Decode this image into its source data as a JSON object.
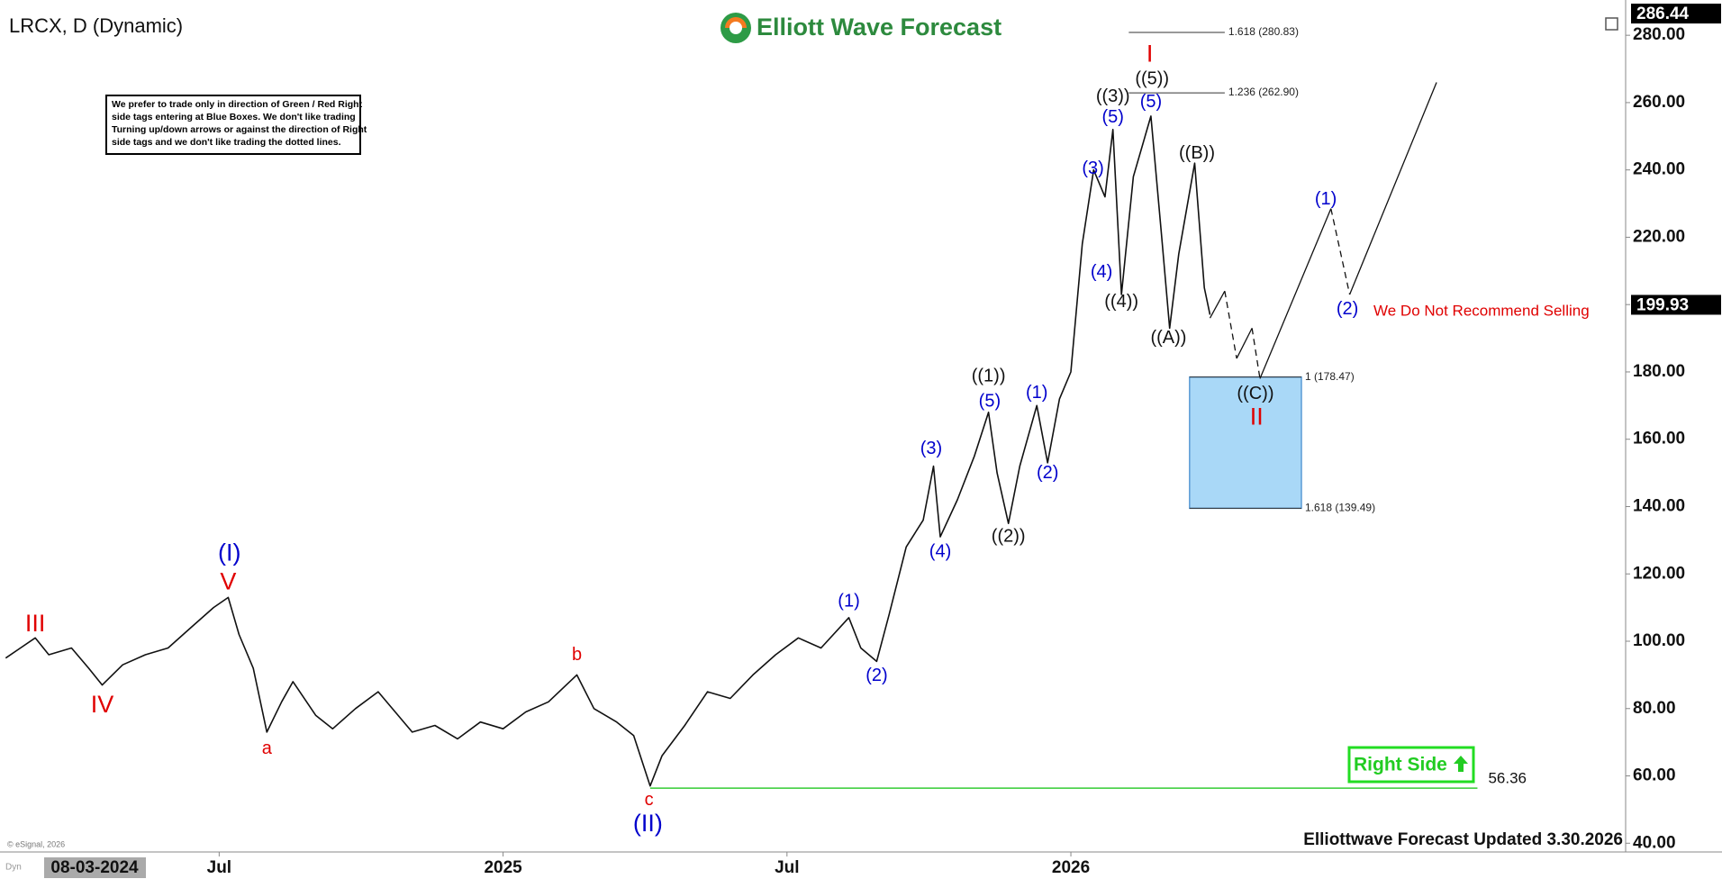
{
  "chart_data": {
    "type": "line",
    "title": "LRCX, D (Dynamic)",
    "logo": "Elliott Wave Forecast",
    "footer": "Elliottwave Forecast Updated 3.30.2026",
    "copyright": "© eSignal, 2026",
    "corner_tag": "Dyn",
    "cursor_date": "08-03-2024",
    "info_box": {
      "lines": [
        "We prefer to trade only in direction of Green / Red Right",
        "side tags entering at Blue Boxes. We don't like trading",
        "Turning up/down arrows or against the direction of Right",
        "side tags and we don't like trading the dotted lines."
      ]
    },
    "warning": "We Do Not Recommend Selling",
    "right_side": "Right Side",
    "xlim": [
      2024.114,
      2026.977
    ],
    "xticks": [
      {
        "value": 2024.5,
        "label": "Jul"
      },
      {
        "value": 2025,
        "label": "2025"
      },
      {
        "value": 2025.5,
        "label": "Jul"
      },
      {
        "value": 2026,
        "label": "2026"
      }
    ],
    "ylim": [
      37.4,
      287.8
    ],
    "yticks": [
      {
        "value": 40,
        "label": "40.00"
      },
      {
        "value": 60,
        "label": "60.00"
      },
      {
        "value": 80,
        "label": "80.00"
      },
      {
        "value": 100,
        "label": "100.00"
      },
      {
        "value": 120,
        "label": "120.00"
      },
      {
        "value": 140,
        "label": "140.00"
      },
      {
        "value": 160,
        "label": "160.00"
      },
      {
        "value": 180,
        "label": "180.00"
      },
      {
        "value": 200,
        "label": "200.00"
      },
      {
        "value": 220,
        "label": "220.00"
      },
      {
        "value": 240,
        "label": "240.00"
      },
      {
        "value": 260,
        "label": "260.00"
      },
      {
        "value": 280,
        "label": "280.00"
      }
    ],
    "axis_readout": 286.44,
    "last_price": 199.93,
    "series": [
      {
        "color": "#111111",
        "x": [
          2024.124,
          2024.15,
          2024.176,
          2024.2,
          2024.24,
          2024.27,
          2024.294,
          2024.33,
          2024.37,
          2024.41,
          2024.45,
          2024.49,
          2024.516,
          2024.535,
          2024.56,
          2024.584,
          2024.61,
          2024.63,
          2024.67,
          2024.7,
          2024.74,
          2024.78,
          2024.81,
          2024.84,
          2024.88,
          2024.92,
          2024.96,
          2025.0,
          2025.04,
          2025.08,
          2025.13,
          2025.16,
          2025.2,
          2025.23,
          2025.259,
          2025.28,
          2025.32,
          2025.36,
          2025.4,
          2025.44,
          2025.48,
          2025.52,
          2025.56,
          2025.609,
          2025.63,
          2025.658,
          2025.68,
          2025.71,
          2025.74,
          2025.758,
          2025.77,
          2025.8,
          2025.83,
          2025.855,
          2025.87,
          2025.89,
          2025.91,
          2025.94,
          2025.959,
          2025.98,
          2026.0,
          2026.02,
          2026.04,
          2026.06,
          2026.074,
          2026.089,
          2026.11,
          2026.141,
          2026.16,
          2026.174,
          2026.19,
          2026.218,
          2026.235,
          2026.245
        ],
        "values": [
          95,
          98,
          101,
          96,
          98,
          92,
          87,
          93,
          96,
          98,
          104,
          110,
          113,
          102,
          92,
          73,
          82,
          88,
          78,
          74,
          80,
          85,
          79,
          73,
          75,
          71,
          76,
          74,
          79,
          82,
          90,
          80,
          76,
          72,
          57,
          66,
          75,
          85,
          83,
          90,
          96,
          101,
          98,
          107,
          98,
          94,
          108,
          128,
          136,
          152,
          131,
          142,
          155,
          168,
          150,
          135,
          152,
          170,
          153,
          172,
          180,
          218,
          240,
          232,
          252,
          203,
          238,
          256,
          220,
          193,
          215,
          242,
          205,
          197
        ]
      }
    ],
    "projection": {
      "color": "#111111",
      "x": [
        2026.245,
        2026.271,
        2026.292,
        2026.319,
        2026.333,
        2026.458,
        2026.491,
        2026.644
      ],
      "values": [
        196,
        204,
        184,
        193,
        178,
        228.5,
        203,
        266
      ],
      "dashed": [
        false,
        true,
        false,
        true,
        false,
        true,
        false
      ]
    },
    "fib_levels": [
      {
        "value": 280.83,
        "label": "1.618 (280.83)",
        "x": [
          2026.102,
          2026.271
        ]
      },
      {
        "value": 262.9,
        "label": "1.236 (262.90)",
        "x": [
          2026.102,
          2026.271
        ]
      },
      {
        "value": 178.47,
        "label": "1 (178.47)",
        "x": [
          2026.209,
          2026.406
        ]
      },
      {
        "value": 139.49,
        "label": "1.618 (139.49)",
        "x": [
          2026.209,
          2026.406
        ]
      }
    ],
    "target_box": {
      "x": [
        2026.209,
        2026.406
      ],
      "y": [
        139.49,
        178.47
      ],
      "color": "#a9d8f7"
    },
    "support": {
      "value": 56.36,
      "x": [
        2025.259,
        2026.716
      ],
      "color": "#33cc33"
    },
    "annotations": [
      {
        "text": "III",
        "x": 2024.176,
        "y": 104.9,
        "color": "#e00000"
      },
      {
        "text": "IV",
        "x": 2024.294,
        "y": 80.8,
        "color": "#e00000"
      },
      {
        "text": "(I)",
        "x": 2024.518,
        "y": 125.8,
        "color": "#0000cc"
      },
      {
        "text": "V",
        "x": 2024.516,
        "y": 117.3,
        "color": "#e00000"
      },
      {
        "text": "a",
        "x": 2024.584,
        "y": 68,
        "color": "#e00000"
      },
      {
        "text": "b",
        "x": 2025.13,
        "y": 95.8,
        "color": "#e00000"
      },
      {
        "text": "c",
        "x": 2025.257,
        "y": 52.7,
        "color": "#e00000"
      },
      {
        "text": "(II)",
        "x": 2025.255,
        "y": 45.5,
        "color": "#0000cc"
      },
      {
        "text": "(1)",
        "x": 2025.609,
        "y": 111.7,
        "color": "#0000cc"
      },
      {
        "text": "(2)",
        "x": 2025.658,
        "y": 89.6,
        "color": "#0000cc"
      },
      {
        "text": "(3)",
        "x": 2025.754,
        "y": 157,
        "color": "#0000cc"
      },
      {
        "text": "(4)",
        "x": 2025.77,
        "y": 126.4,
        "color": "#0000cc"
      },
      {
        "text": "(5)",
        "x": 2025.857,
        "y": 171.1,
        "color": "#0000cc"
      },
      {
        "text": "((1))",
        "x": 2025.855,
        "y": 178.6,
        "color": "#111111"
      },
      {
        "text": "((2))",
        "x": 2025.89,
        "y": 131,
        "color": "#111111"
      },
      {
        "text": "(1)",
        "x": 2025.94,
        "y": 173.7,
        "color": "#0000cc"
      },
      {
        "text": "(2)",
        "x": 2025.959,
        "y": 149.9,
        "color": "#0000cc"
      },
      {
        "text": "(3)",
        "x": 2026.039,
        "y": 240.2,
        "color": "#0000cc"
      },
      {
        "text": "(4)",
        "x": 2026.054,
        "y": 209.5,
        "color": "#0000cc"
      },
      {
        "text": "((4))",
        "x": 2026.089,
        "y": 200.7,
        "color": "#111111"
      },
      {
        "text": "(5)",
        "x": 2026.074,
        "y": 255.5,
        "color": "#0000cc"
      },
      {
        "text": "((3))",
        "x": 2026.074,
        "y": 261.7,
        "color": "#111111"
      },
      {
        "text": "(5)",
        "x": 2026.141,
        "y": 260.1,
        "color": "#0000cc"
      },
      {
        "text": "((5))",
        "x": 2026.143,
        "y": 266.9,
        "color": "#111111"
      },
      {
        "text": "I",
        "x": 2026.139,
        "y": 274.1,
        "color": "#e00000"
      },
      {
        "text": "((B))",
        "x": 2026.222,
        "y": 244.8,
        "color": "#111111"
      },
      {
        "text": "((A))",
        "x": 2026.172,
        "y": 190,
        "color": "#111111"
      },
      {
        "text": "((C))",
        "x": 2026.325,
        "y": 173.4,
        "color": "#111111"
      },
      {
        "text": "II",
        "x": 2026.327,
        "y": 166.2,
        "color": "#e00000"
      },
      {
        "text": "(1)",
        "x": 2026.449,
        "y": 231.1,
        "color": "#0000cc"
      },
      {
        "text": "(2)",
        "x": 2026.487,
        "y": 198.5,
        "color": "#0000cc"
      }
    ]
  }
}
